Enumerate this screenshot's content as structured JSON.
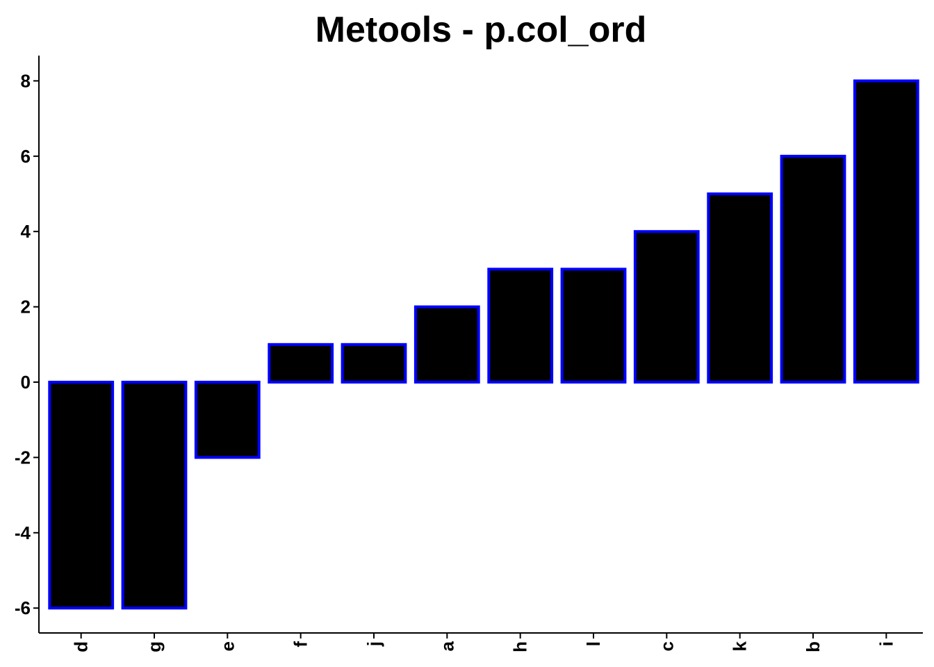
{
  "chart_data": {
    "type": "bar",
    "title": "Metools - p.col_ord",
    "xlabel": "",
    "ylabel": "",
    "categories": [
      "d",
      "g",
      "e",
      "f",
      "j",
      "a",
      "h",
      "l",
      "c",
      "k",
      "b",
      "i"
    ],
    "values": [
      -6,
      -6,
      -2,
      1,
      1,
      2,
      3,
      3,
      4,
      5,
      6,
      8
    ],
    "ylim": [
      -6.7,
      8.7
    ],
    "yticks": [
      "-6",
      "-4",
      "-2",
      "0",
      "2",
      "4",
      "6",
      "8"
    ],
    "bar_fill": "#000000",
    "bar_outline": "#0000FF",
    "grid": false,
    "legend": "none",
    "x_tick_rotation": "vertical"
  }
}
